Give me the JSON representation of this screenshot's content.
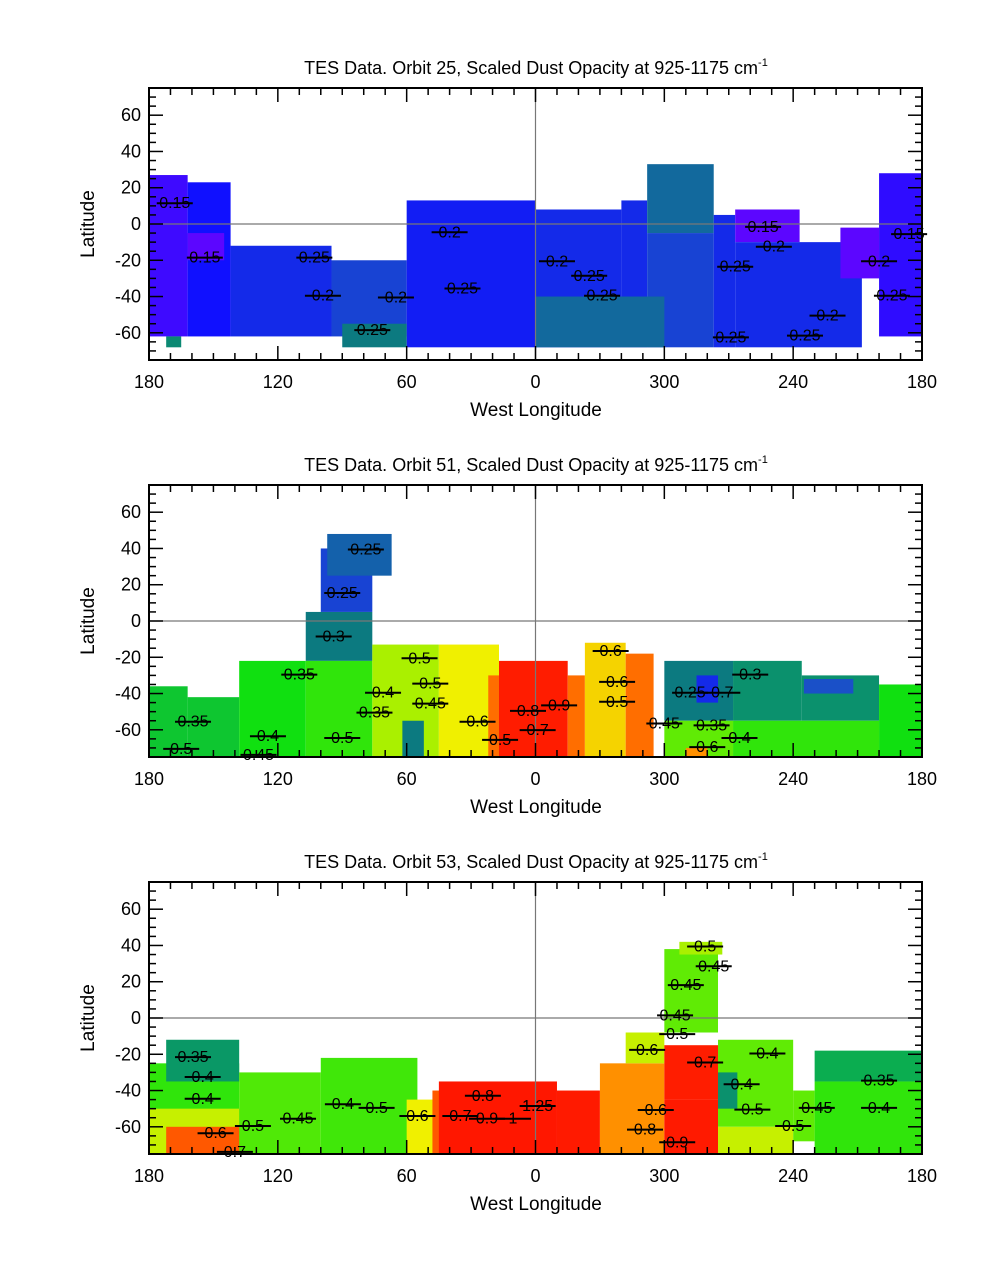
{
  "chart_data": [
    {
      "type": "heatmap",
      "title": "TES Data.  Orbit 25,  Scaled Dust Opacity at 925-1175 cm",
      "title_sup": "-1",
      "xlabel": "West Longitude",
      "ylabel": "Latitude",
      "xticks": [
        "180",
        "120",
        "60",
        "0",
        "300",
        "240",
        "180"
      ],
      "yticks": [
        "60",
        "40",
        "20",
        "0",
        "-20",
        "-40",
        "-60"
      ],
      "ylim": [
        -75,
        75
      ],
      "patches": [
        [
          180,
          162,
          -62,
          27,
          0.17
        ],
        [
          162,
          142,
          -62,
          23,
          0.2
        ],
        [
          162,
          145,
          -20,
          -5,
          0.15
        ],
        [
          142,
          95,
          -62,
          -12,
          0.22
        ],
        [
          95,
          60,
          -62,
          -20,
          0.24
        ],
        [
          60,
          0,
          -68,
          13,
          0.21
        ],
        [
          0,
          320,
          -68,
          8,
          0.22
        ],
        [
          320,
          308,
          -68,
          13,
          0.22
        ],
        [
          308,
          277,
          -5,
          33,
          0.28
        ],
        [
          308,
          277,
          -68,
          -5,
          0.24
        ],
        [
          277,
          267,
          -68,
          5,
          0.22
        ],
        [
          267,
          237,
          -10,
          8,
          0.15
        ],
        [
          267,
          208,
          -68,
          -10,
          0.22
        ],
        [
          218,
          200,
          -30,
          -2,
          0.15
        ],
        [
          200,
          180,
          -62,
          28,
          0.18
        ],
        [
          90,
          60,
          -68,
          -55,
          0.3
        ],
        [
          0,
          300,
          -68,
          -40,
          0.28
        ],
        [
          172,
          165,
          -68,
          -62,
          0.32
        ]
      ],
      "labels": [
        [
          168,
          12,
          "0.15"
        ],
        [
          154,
          -18,
          "0.15"
        ],
        [
          103,
          -18,
          "0.25"
        ],
        [
          99,
          -39,
          "0.2"
        ],
        [
          65,
          -40,
          "0.2"
        ],
        [
          40,
          -4,
          "0.2"
        ],
        [
          34,
          -35,
          "0.25"
        ],
        [
          350,
          -20,
          "0.2"
        ],
        [
          335,
          -28,
          "0.25"
        ],
        [
          329,
          -39,
          "0.25"
        ],
        [
          254,
          -1,
          "0.15"
        ],
        [
          249,
          -7,
          "0.2"
        ],
        [
          267,
          -23,
          "0.25"
        ],
        [
          186,
          -5,
          "0.15"
        ],
        [
          200,
          -20,
          "0.2"
        ],
        [
          194,
          -39,
          "0.25"
        ],
        [
          224,
          -50,
          "0.2"
        ],
        [
          76,
          -58,
          "0.25"
        ],
        [
          269,
          -62,
          "0.25"
        ],
        [
          234.5,
          -61,
          "0.25"
        ]
      ]
    },
    {
      "type": "heatmap",
      "title": "TES Data.  Orbit 51,  Scaled Dust Opacity at 925-1175 cm",
      "title_sup": "-1",
      "xlabel": "West Longitude",
      "ylabel": "Latitude",
      "xticks": [
        "180",
        "120",
        "60",
        "0",
        "300",
        "240",
        "180"
      ],
      "yticks": [
        "60",
        "40",
        "20",
        "0",
        "-20",
        "-40",
        "-60"
      ],
      "ylim": [
        -75,
        75
      ],
      "patches": [
        [
          180,
          162,
          -75,
          -36,
          0.38
        ],
        [
          162,
          138,
          -75,
          -42,
          0.38
        ],
        [
          138,
          107,
          -75,
          -22,
          0.4
        ],
        [
          107,
          76,
          -22,
          5,
          0.3
        ],
        [
          100,
          76,
          5,
          40,
          0.24
        ],
        [
          97,
          67,
          25,
          48,
          0.27
        ],
        [
          107,
          76,
          -75,
          -22,
          0.42
        ],
        [
          76,
          45,
          -75,
          -13,
          0.5
        ],
        [
          62,
          52,
          -75,
          -55,
          0.3
        ],
        [
          45,
          17,
          -75,
          -13,
          0.55
        ],
        [
          22,
          12,
          -75,
          -30,
          0.68
        ],
        [
          17,
          345,
          -75,
          -22,
          0.82
        ],
        [
          345,
          337,
          -75,
          -30,
          0.68
        ],
        [
          337,
          318,
          -75,
          -12,
          0.58
        ],
        [
          318,
          305,
          -75,
          -18,
          0.68
        ],
        [
          300,
          268,
          -55,
          -22,
          0.3
        ],
        [
          285,
          275,
          -45,
          -30,
          0.22
        ],
        [
          300,
          268,
          -75,
          -55,
          0.45
        ],
        [
          268,
          236,
          -55,
          -22,
          0.33
        ],
        [
          236,
          200,
          -55,
          -30,
          0.33
        ],
        [
          235,
          212,
          -40,
          -32,
          0.25
        ],
        [
          200,
          180,
          -75,
          -35,
          0.4
        ],
        [
          268,
          200,
          -75,
          -55,
          0.42
        ],
        [
          290,
          280,
          -75,
          -70,
          0.65
        ]
      ],
      "labels": [
        [
          79,
          40,
          "0.25"
        ],
        [
          90,
          16,
          "0.25"
        ],
        [
          94,
          -8,
          "0.3"
        ],
        [
          110,
          -29,
          "0.35"
        ],
        [
          54,
          -20,
          "0.5"
        ],
        [
          325,
          -16,
          "0.6"
        ],
        [
          49,
          -34,
          "0.5"
        ],
        [
          71,
          -39,
          "0.4"
        ],
        [
          49,
          -45,
          "0.45"
        ],
        [
          75,
          -45,
          "0.35"
        ],
        [
          27,
          -55,
          "0.6"
        ],
        [
          3.5,
          -49,
          "0.8"
        ],
        [
          349,
          -46,
          "0.9"
        ],
        [
          359,
          -58,
          "0.7"
        ],
        [
          16.5,
          -65,
          "0.5"
        ],
        [
          322,
          -33,
          "0.6"
        ],
        [
          322,
          -44,
          "0.5"
        ],
        [
          288,
          -39,
          "0.25"
        ],
        [
          260,
          -29,
          "0.3"
        ],
        [
          273,
          -39,
          "0.7"
        ],
        [
          300,
          -56,
          "0.45"
        ],
        [
          278,
          -57,
          "0.35"
        ],
        [
          265,
          -64,
          "0.4"
        ],
        [
          280,
          -69,
          "0.6"
        ],
        [
          159.5,
          -55,
          "0.35"
        ],
        [
          124.6,
          -63,
          "0.4"
        ],
        [
          129,
          -70,
          "0.45"
        ],
        [
          165,
          -70,
          "0.5"
        ],
        [
          90,
          -64,
          "0.5"
        ]
      ]
    },
    {
      "type": "heatmap",
      "title": "TES Data.  Orbit 53,  Scaled Dust Opacity at 925-1175 cm",
      "title_sup": "-1",
      "xlabel": "West Longitude",
      "ylabel": "Latitude",
      "xticks": [
        "180",
        "120",
        "60",
        "0",
        "300",
        "240",
        "180"
      ],
      "yticks": [
        "60",
        "40",
        "20",
        "0",
        "-20",
        "-40",
        "-60"
      ],
      "ylim": [
        -75,
        75
      ],
      "patches": [
        [
          180,
          138,
          -75,
          -25,
          0.42
        ],
        [
          172,
          138,
          -35,
          -12,
          0.34
        ],
        [
          180,
          130,
          -75,
          -50,
          0.52
        ],
        [
          172,
          130,
          -75,
          -60,
          0.7
        ],
        [
          138,
          100,
          -75,
          -30,
          0.44
        ],
        [
          100,
          55,
          -75,
          -22,
          0.43
        ],
        [
          60,
          45,
          -75,
          -45,
          0.55
        ],
        [
          48,
          35,
          -75,
          -40,
          0.7
        ],
        [
          45,
          350,
          -75,
          -35,
          0.9
        ],
        [
          350,
          330,
          -75,
          -40,
          0.85
        ],
        [
          330,
          300,
          -75,
          -25,
          0.65
        ],
        [
          318,
          300,
          -25,
          -8,
          0.52
        ],
        [
          300,
          275,
          -8,
          38,
          0.45
        ],
        [
          293,
          273,
          35,
          42,
          0.5
        ],
        [
          300,
          275,
          -45,
          -15,
          0.8
        ],
        [
          300,
          275,
          -75,
          -45,
          0.85
        ],
        [
          275,
          240,
          -60,
          -12,
          0.45
        ],
        [
          275,
          266,
          -50,
          -30,
          0.33
        ],
        [
          275,
          240,
          -75,
          -60,
          0.52
        ],
        [
          240,
          230,
          -68,
          -40,
          0.45
        ],
        [
          230,
          180,
          -75,
          -35,
          0.42
        ],
        [
          230,
          180,
          -35,
          -18,
          0.36
        ]
      ],
      "labels": [
        [
          281,
          40,
          "0.5"
        ],
        [
          277,
          39,
          "0.45"
        ],
        [
          290,
          22,
          "0.45"
        ],
        [
          295,
          2,
          "0.45"
        ],
        [
          294,
          -5,
          "0.5"
        ],
        [
          308,
          -17,
          "0.6"
        ],
        [
          281,
          -24,
          "0.7"
        ],
        [
          252,
          -19,
          "0.4"
        ],
        [
          159.5,
          -21,
          "0.35"
        ],
        [
          155,
          -32,
          "0.4"
        ],
        [
          155,
          -44,
          "0.4"
        ],
        [
          200,
          -34,
          "0.35"
        ],
        [
          200,
          -49,
          "0.4"
        ],
        [
          110.6,
          -55,
          "0.45"
        ],
        [
          89.7,
          -47,
          "0.4"
        ],
        [
          74,
          -49,
          "0.5"
        ],
        [
          55,
          -53.5,
          "0.6"
        ],
        [
          35,
          -53.5,
          "0.7"
        ],
        [
          24.5,
          -44,
          "0.8"
        ],
        [
          22.6,
          -55,
          "0.9"
        ],
        [
          10.5,
          -55,
          "1"
        ],
        [
          359,
          -48,
          "1.25"
        ],
        [
          229,
          -49,
          "0.45"
        ],
        [
          259,
          -50,
          "0.5"
        ],
        [
          240,
          -59,
          "0.5"
        ],
        [
          149,
          -63,
          "0.6"
        ],
        [
          131.6,
          -59,
          "0.5"
        ],
        [
          140,
          -70,
          "0.7"
        ],
        [
          309,
          -61,
          "0.8"
        ],
        [
          294,
          -68,
          "0.9"
        ],
        [
          264,
          -36,
          "0.4"
        ],
        [
          304,
          -53.5,
          "0.6"
        ]
      ]
    }
  ],
  "colorscale": [
    [
      0.12,
      "#8a00ff"
    ],
    [
      0.2,
      "#1010ff"
    ],
    [
      0.25,
      "#1a50c8"
    ],
    [
      0.3,
      "#0c7a80"
    ],
    [
      0.35,
      "#0aa060"
    ],
    [
      0.4,
      "#10e010"
    ],
    [
      0.47,
      "#80f000"
    ],
    [
      0.55,
      "#f0f000"
    ],
    [
      0.65,
      "#ff9000"
    ],
    [
      0.75,
      "#ff2000"
    ],
    [
      1.3,
      "#ff0000"
    ]
  ]
}
